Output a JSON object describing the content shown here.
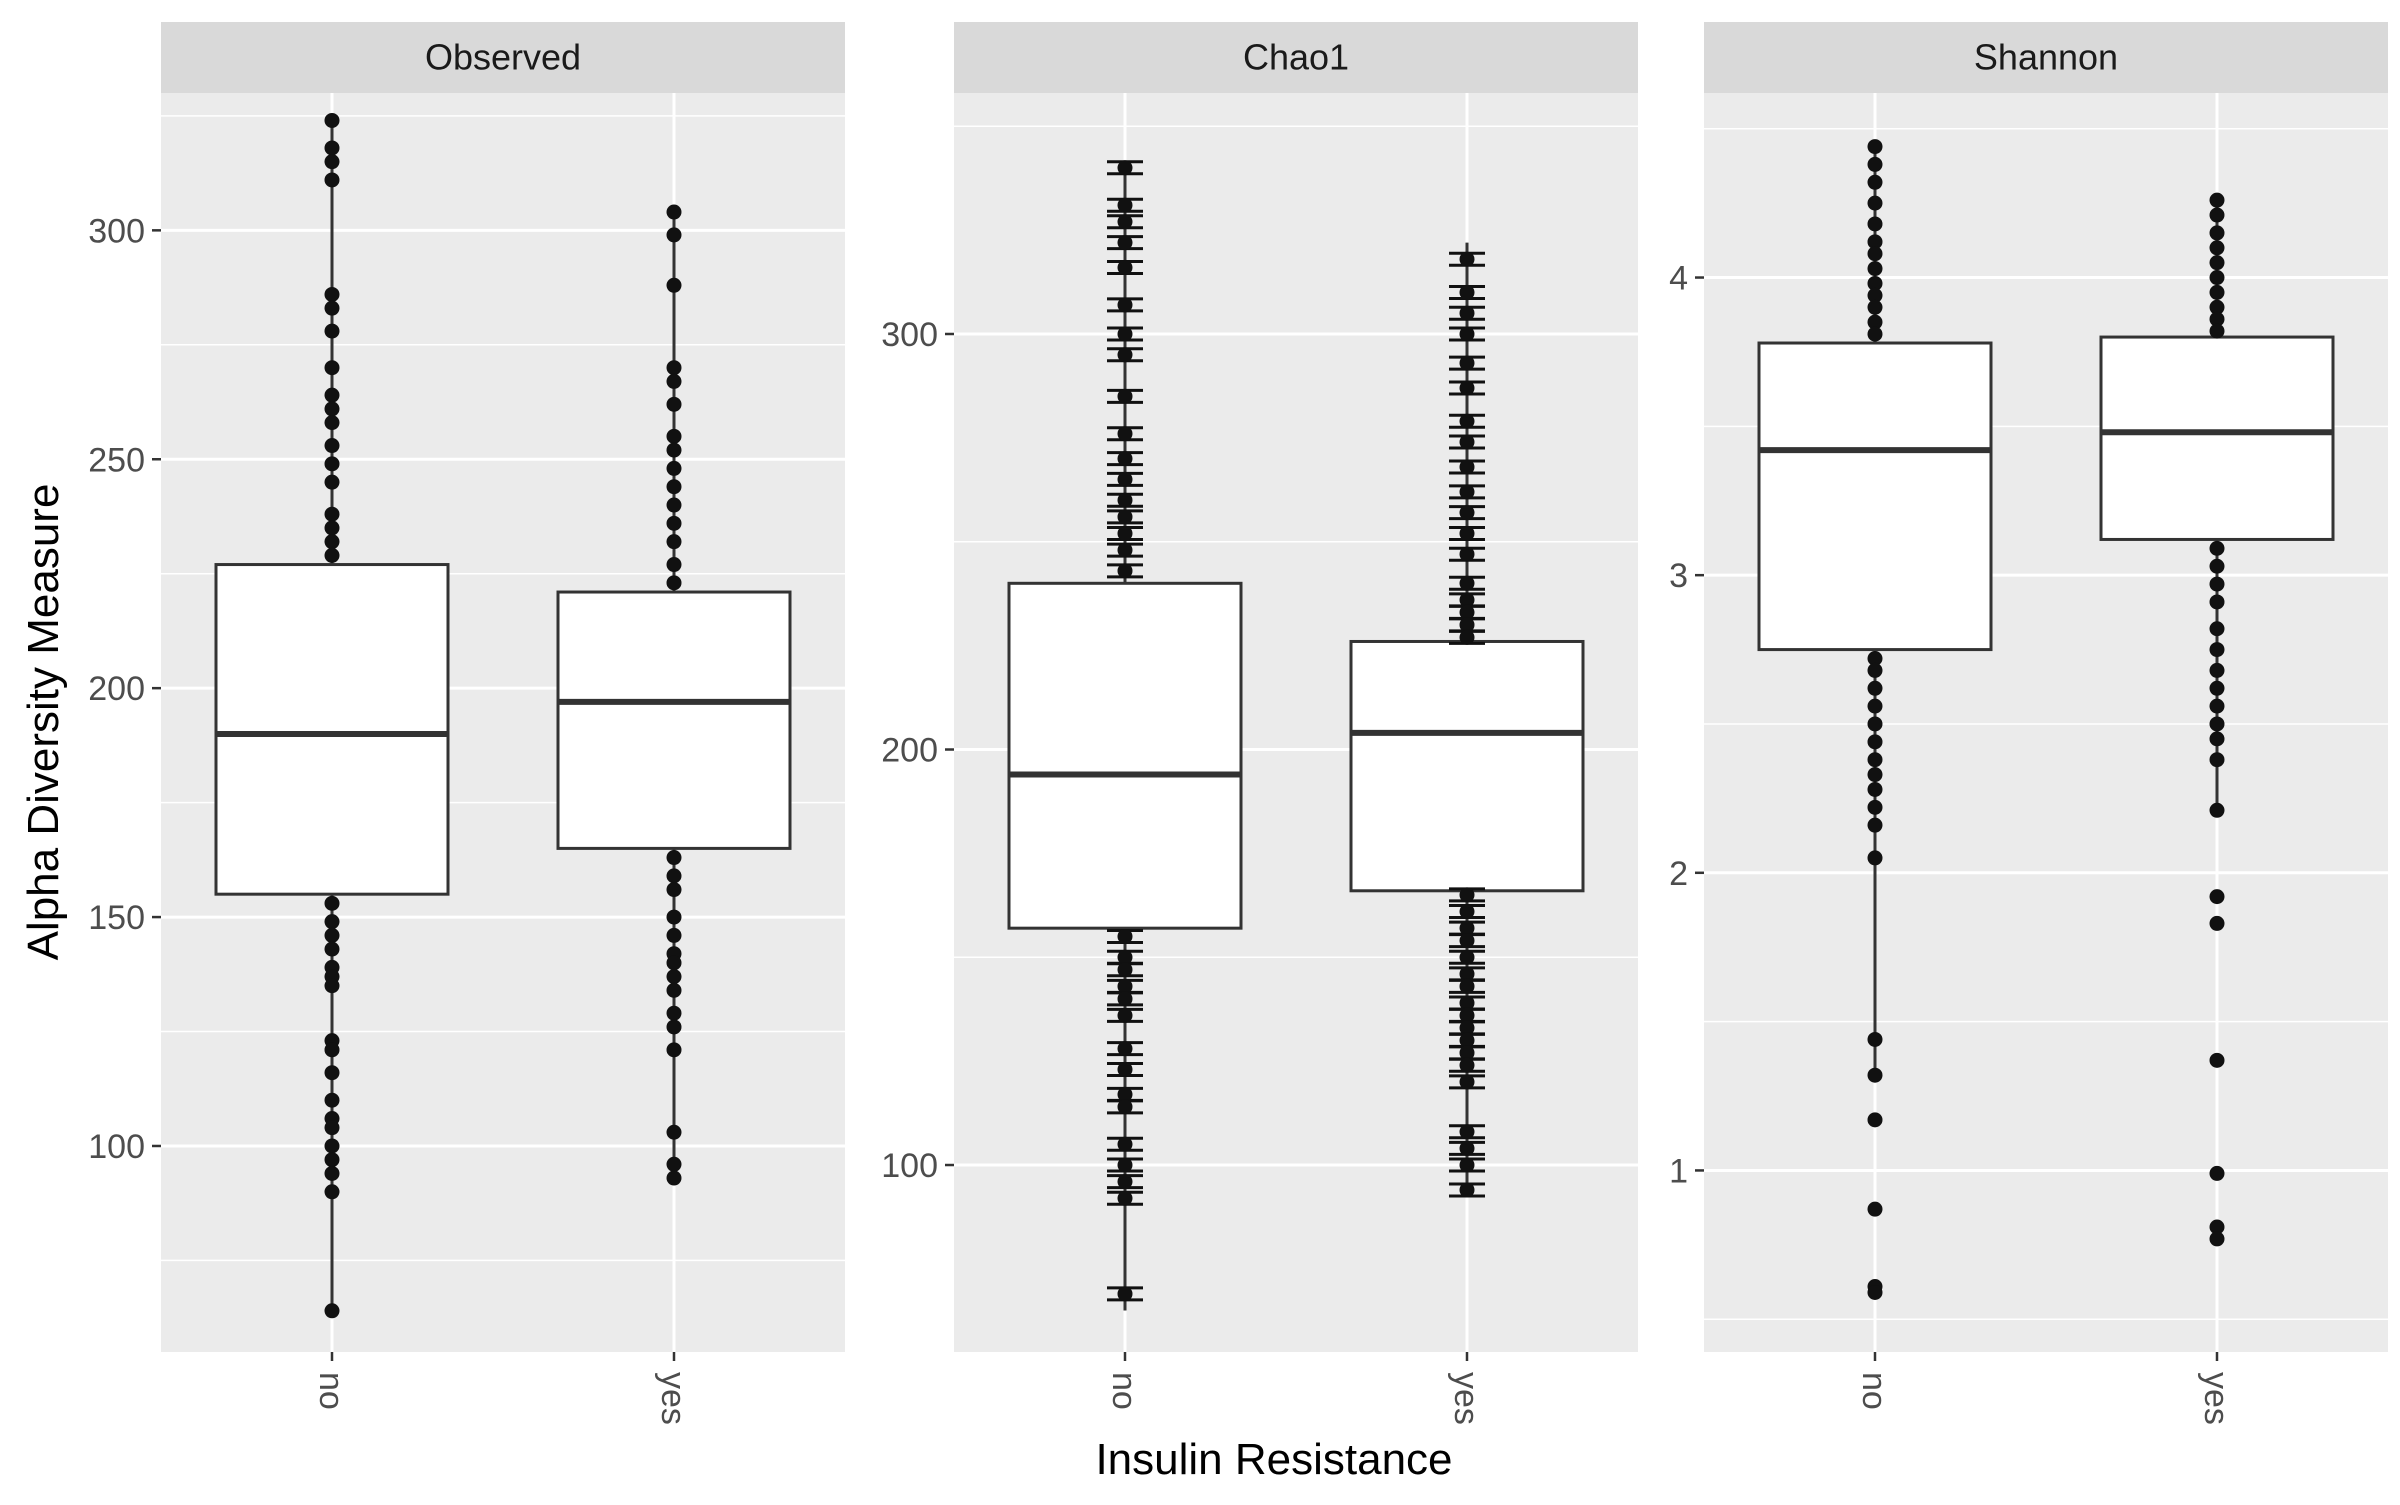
{
  "chart_data": {
    "type": "box",
    "xlabel": "Insulin Resistance",
    "ylabel": "Alpha Diversity Measure",
    "categories": [
      "no",
      "yes"
    ],
    "facets": [
      {
        "name": "Observed",
        "ylim": [
          55,
          330
        ],
        "yticks": [
          100,
          150,
          200,
          250,
          300
        ],
        "tick_labels": [
          "100",
          "150",
          "200",
          "250",
          "300"
        ],
        "boxes": [
          {
            "category": "no",
            "whisker_low": 64,
            "q1": 155,
            "median": 190,
            "q3": 227,
            "whisker_high": 324,
            "points": [
              324,
              318,
              315,
              311,
              286,
              283,
              278,
              270,
              264,
              261,
              258,
              253,
              249,
              245,
              238,
              235,
              232,
              229,
              153,
              149,
              146,
              143,
              139,
              137,
              135,
              123,
              121,
              116,
              110,
              106,
              104,
              100,
              97,
              94,
              90,
              64
            ]
          },
          {
            "category": "yes",
            "whisker_low": 93,
            "q1": 165,
            "median": 197,
            "q3": 221,
            "whisker_high": 304,
            "points": [
              304,
              299,
              288,
              270,
              267,
              262,
              255,
              252,
              248,
              244,
              240,
              236,
              232,
              227,
              223,
              163,
              159,
              156,
              150,
              146,
              142,
              140,
              137,
              134,
              129,
              126,
              121,
              103,
              96,
              93
            ]
          }
        ]
      },
      {
        "name": "Chao1",
        "ylim": [
          55,
          358
        ],
        "yticks": [
          100,
          200,
          300
        ],
        "tick_labels": [
          "100",
          "200",
          "300"
        ],
        "boxes": [
          {
            "category": "no",
            "whisker_low": 65,
            "q1": 157,
            "median": 194,
            "q3": 240,
            "whisker_high": 340,
            "points": [
              340,
              331,
              327,
              322,
              316,
              307,
              300,
              295,
              285,
              276,
              270,
              265,
              260,
              256,
              252,
              248,
              243,
              155,
              150,
              147,
              143,
              140,
              136,
              128,
              123,
              117,
              114,
              105,
              100,
              96,
              92,
              69
            ]
          },
          {
            "category": "yes",
            "whisker_low": 93,
            "q1": 166,
            "median": 204,
            "q3": 226,
            "whisker_high": 322,
            "points": [
              318,
              310,
              305,
              300,
              293,
              287,
              279,
              274,
              268,
              262,
              257,
              252,
              247,
              240,
              236,
              233,
              230,
              227,
              165,
              161,
              157,
              154,
              150,
              146,
              143,
              139,
              136,
              133,
              130,
              127,
              124,
              120,
              108,
              104,
              100,
              94
            ]
          }
        ]
      },
      {
        "name": "Shannon",
        "ylim": [
          0.39,
          4.62
        ],
        "yticks": [
          1,
          2,
          3,
          4
        ],
        "tick_labels": [
          "1",
          "2",
          "3",
          "4"
        ],
        "boxes": [
          {
            "category": "no",
            "whisker_low": 1.32,
            "q1": 2.75,
            "median": 3.42,
            "q3": 3.78,
            "whisker_high": 4.44,
            "points": [
              4.44,
              4.38,
              4.32,
              4.25,
              4.18,
              4.12,
              4.08,
              4.03,
              3.98,
              3.94,
              3.9,
              3.85,
              3.81,
              2.72,
              2.68,
              2.62,
              2.56,
              2.5,
              2.44,
              2.38,
              2.33,
              2.28,
              2.22,
              2.16,
              2.05,
              1.44,
              1.32,
              1.17,
              0.87,
              0.61,
              0.59
            ]
          },
          {
            "category": "yes",
            "whisker_low": 2.21,
            "q1": 3.12,
            "median": 3.48,
            "q3": 3.8,
            "whisker_high": 4.26,
            "points": [
              4.26,
              4.21,
              4.15,
              4.1,
              4.05,
              4.0,
              3.95,
              3.9,
              3.86,
              3.82,
              3.09,
              3.03,
              2.97,
              2.91,
              2.82,
              2.75,
              2.68,
              2.62,
              2.56,
              2.5,
              2.45,
              2.38,
              2.21,
              1.92,
              1.83,
              1.37,
              0.99,
              0.81,
              0.77
            ]
          }
        ]
      }
    ]
  }
}
